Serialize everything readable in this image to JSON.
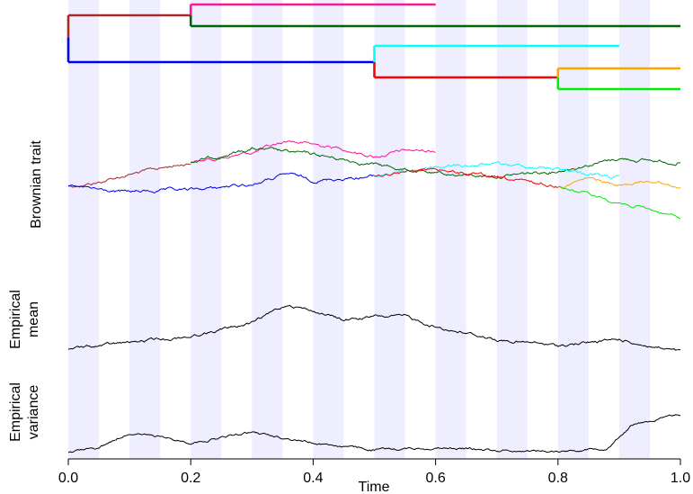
{
  "chart_data": {
    "type": "line",
    "xlabel": "Time",
    "xlim": [
      0,
      1
    ],
    "x_ticks": [
      "0.0",
      "0.2",
      "0.4",
      "0.6",
      "0.8",
      "1.0"
    ],
    "x_tick_values": [
      0,
      0.2,
      0.4,
      0.6,
      0.8,
      1.0
    ],
    "shaded_bands": [
      [
        0.0,
        0.05
      ],
      [
        0.1,
        0.15
      ],
      [
        0.2,
        0.25
      ],
      [
        0.3,
        0.35
      ],
      [
        0.4,
        0.45
      ],
      [
        0.5,
        0.55
      ],
      [
        0.6,
        0.65
      ],
      [
        0.7,
        0.75
      ],
      [
        0.8,
        0.85
      ],
      [
        0.9,
        0.95
      ]
    ],
    "band_color": "#eeeeff",
    "panels": {
      "tree": {
        "tips": [
          {
            "color": "#ff1493",
            "start": 0.2,
            "end": 0.6
          },
          {
            "color": "#006400",
            "start": 0.2,
            "end": 1.0
          },
          {
            "color": "#00ffff",
            "start": 0.5,
            "end": 0.9
          },
          {
            "color": "#ffa500",
            "start": 0.8,
            "end": 1.0
          },
          {
            "color": "#00ee00",
            "start": 0.8,
            "end": 1.0
          }
        ],
        "internal": [
          {
            "color": "#a52a2a",
            "start": 0.0,
            "end": 0.2
          },
          {
            "color": "#0000ee",
            "start": 0.0,
            "end": 0.5
          },
          {
            "color": "#ff0000",
            "start": 0.5,
            "end": 0.8
          }
        ]
      },
      "brownian": {
        "ylabel": "Brownian trait",
        "series": [
          {
            "color": "#a52a2a",
            "start": 0.0,
            "end": 0.2,
            "anchors": [
              [
                0,
                0
              ],
              [
                0.05,
                0.2
              ],
              [
                0.1,
                0.6
              ],
              [
                0.15,
                0.9
              ],
              [
                0.2,
                1.2
              ]
            ]
          },
          {
            "color": "#ff1493",
            "start": 0.2,
            "end": 0.6,
            "anchors": [
              [
                0.2,
                1.2
              ],
              [
                0.3,
                1.7
              ],
              [
                0.36,
                2.3
              ],
              [
                0.45,
                1.9
              ],
              [
                0.5,
                1.5
              ],
              [
                0.55,
                1.8
              ],
              [
                0.6,
                1.8
              ]
            ]
          },
          {
            "color": "#006400",
            "start": 0.2,
            "end": 1.0,
            "anchors": [
              [
                0.2,
                1.2
              ],
              [
                0.3,
                1.9
              ],
              [
                0.4,
                1.6
              ],
              [
                0.5,
                1.1
              ],
              [
                0.6,
                0.6
              ],
              [
                0.7,
                0.5
              ],
              [
                0.8,
                0.8
              ],
              [
                0.9,
                1.4
              ],
              [
                1.0,
                1.2
              ]
            ]
          },
          {
            "color": "#0000ee",
            "start": 0.0,
            "end": 0.5,
            "anchors": [
              [
                0,
                0
              ],
              [
                0.08,
                -0.3
              ],
              [
                0.2,
                -0.2
              ],
              [
                0.3,
                0.1
              ],
              [
                0.36,
                0.6
              ],
              [
                0.4,
                0.3
              ],
              [
                0.5,
                0.5
              ]
            ]
          },
          {
            "color": "#00ffff",
            "start": 0.5,
            "end": 0.9,
            "anchors": [
              [
                0.5,
                0.5
              ],
              [
                0.6,
                1.0
              ],
              [
                0.7,
                1.1
              ],
              [
                0.8,
                0.9
              ],
              [
                0.9,
                0.4
              ]
            ]
          },
          {
            "color": "#ff0000",
            "start": 0.5,
            "end": 0.8,
            "anchors": [
              [
                0.5,
                0.5
              ],
              [
                0.6,
                0.9
              ],
              [
                0.7,
                0.4
              ],
              [
                0.8,
                0.0
              ]
            ]
          },
          {
            "color": "#ffa500",
            "start": 0.8,
            "end": 1.0,
            "anchors": [
              [
                0.8,
                0.0
              ],
              [
                0.85,
                0.4
              ],
              [
                0.9,
                0.0
              ],
              [
                0.95,
                0.3
              ],
              [
                1.0,
                0.0
              ]
            ]
          },
          {
            "color": "#00ee00",
            "start": 0.8,
            "end": 1.0,
            "anchors": [
              [
                0.8,
                0.0
              ],
              [
                0.85,
                -0.4
              ],
              [
                0.9,
                -0.8
              ],
              [
                0.95,
                -1.2
              ],
              [
                1.0,
                -1.6
              ]
            ]
          }
        ]
      },
      "mean": {
        "ylabel": [
          "Empirical",
          "mean"
        ],
        "series": [
          {
            "color": "#000000",
            "start": 0.0,
            "end": 1.0,
            "anchors": [
              [
                0,
                0
              ],
              [
                0.1,
                0.2
              ],
              [
                0.2,
                0.4
              ],
              [
                0.3,
                0.8
              ],
              [
                0.36,
                1.4
              ],
              [
                0.45,
                0.9
              ],
              [
                0.5,
                1.0
              ],
              [
                0.55,
                1.0
              ],
              [
                0.6,
                0.7
              ],
              [
                0.7,
                0.3
              ],
              [
                0.8,
                0.1
              ],
              [
                0.9,
                0.3
              ],
              [
                1.0,
                -0.1
              ]
            ]
          }
        ]
      },
      "variance": {
        "ylabel": [
          "Empirical",
          "variance"
        ],
        "series": [
          {
            "color": "#000000",
            "start": 0.0,
            "end": 1.0,
            "anchors": [
              [
                0,
                0
              ],
              [
                0.05,
                0.2
              ],
              [
                0.1,
                0.8
              ],
              [
                0.15,
                0.6
              ],
              [
                0.2,
                0.4
              ],
              [
                0.3,
                0.8
              ],
              [
                0.35,
                0.6
              ],
              [
                0.4,
                0.4
              ],
              [
                0.5,
                0.1
              ],
              [
                0.6,
                0.2
              ],
              [
                0.7,
                0.1
              ],
              [
                0.8,
                0.05
              ],
              [
                0.88,
                0.2
              ],
              [
                0.92,
                1.1
              ],
              [
                1.0,
                1.5
              ]
            ]
          }
        ]
      }
    }
  }
}
